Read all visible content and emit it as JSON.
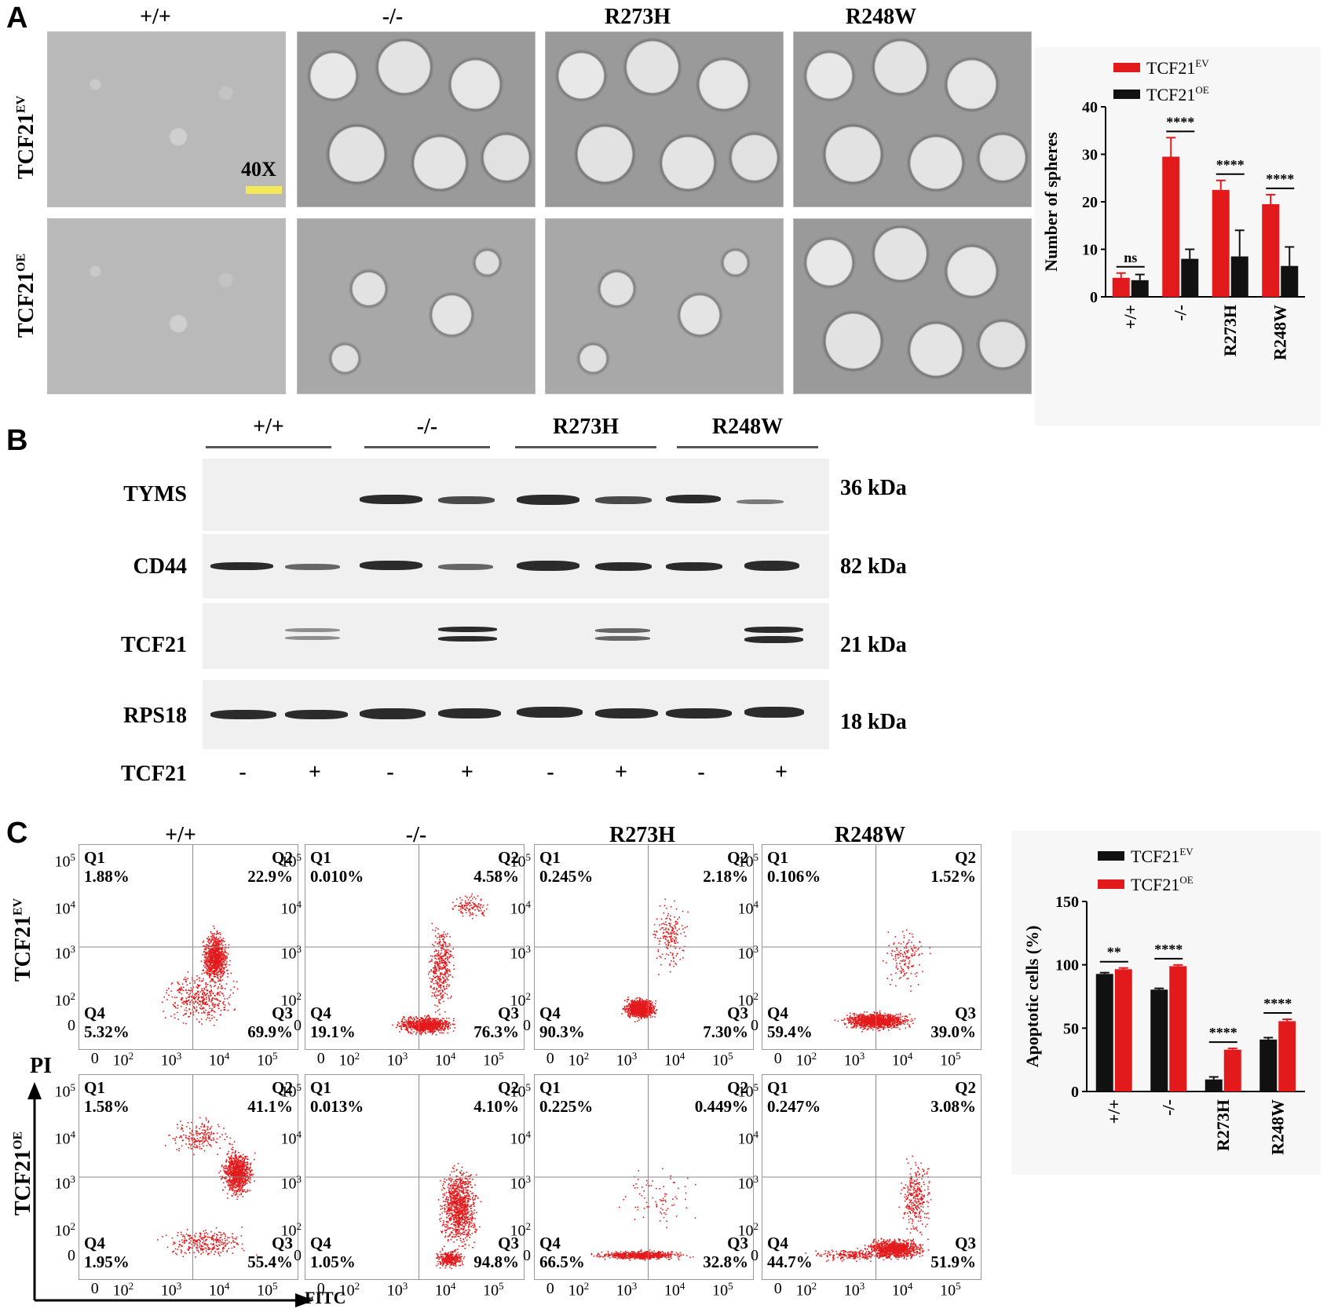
{
  "panels": {
    "a": "A",
    "b": "B",
    "c": "C"
  },
  "genotypes": [
    "+/+",
    "-/-",
    "R273H",
    "R248W"
  ],
  "panel_a": {
    "row_labels": {
      "ev_base": "TCF21",
      "ev_sup": "EV",
      "oe_base": "TCF21",
      "oe_sup": "OE"
    },
    "magnification": "40X",
    "scale_bar_color": "#f2e85a"
  },
  "panel_b": {
    "rows": [
      {
        "name": "TYMS",
        "kda": "36 kDa"
      },
      {
        "name": "CD44",
        "kda": "82 kDa"
      },
      {
        "name": "TCF21",
        "kda": "21 kDa"
      },
      {
        "name": "RPS18",
        "kda": "18 kDa"
      }
    ],
    "treatment_label": "TCF21",
    "treatment_signs": [
      "-",
      "+",
      "-",
      "+",
      "-",
      "+",
      "-",
      "+"
    ]
  },
  "panel_c": {
    "y_axis_label": "PI",
    "x_axis_label": "FITC",
    "row_labels": {
      "ev_base": "TCF21",
      "ev_sup": "EV",
      "oe_base": "TCF21",
      "oe_sup": "OE"
    },
    "quadrant_names": [
      "Q1",
      "Q2",
      "Q4",
      "Q3"
    ],
    "y_ticks": [
      "10",
      "10",
      "10",
      "10",
      "0"
    ],
    "y_tick_exps": [
      "5",
      "4",
      "3",
      "2",
      ""
    ],
    "x_ticks": [
      "0",
      "10",
      "10",
      "10",
      "10"
    ],
    "x_tick_exps": [
      "",
      "2",
      "3",
      "4",
      "5"
    ],
    "plots": [
      {
        "q1": "1.88%",
        "q2": "22.9%",
        "q4": "5.32%",
        "q3": "69.9%"
      },
      {
        "q1": "0.010%",
        "q2": "4.58%",
        "q4": "19.1%",
        "q3": "76.3%"
      },
      {
        "q1": "0.245%",
        "q2": "2.18%",
        "q4": "90.3%",
        "q3": "7.30%"
      },
      {
        "q1": "0.106%",
        "q2": "1.52%",
        "q4": "59.4%",
        "q3": "39.0%"
      },
      {
        "q1": "1.58%",
        "q2": "41.1%",
        "q4": "1.95%",
        "q3": "55.4%"
      },
      {
        "q1": "0.013%",
        "q2": "4.10%",
        "q4": "1.05%",
        "q3": "94.8%"
      },
      {
        "q1": "0.225%",
        "q2": "0.449%",
        "q4": "66.5%",
        "q3": "32.8%"
      },
      {
        "q1": "0.247%",
        "q2": "3.08%",
        "q4": "44.7%",
        "q3": "51.9%"
      }
    ],
    "dot_color": "#e31a1c"
  },
  "colors": {
    "red": "#e31a1c",
    "black": "#111111"
  },
  "chart_data": [
    {
      "type": "bar",
      "ylabel": "Number of spheres",
      "ylim": [
        0,
        40
      ],
      "yticks": [
        0,
        10,
        20,
        30,
        40
      ],
      "categories": [
        "+/+",
        "-/-",
        "R273H",
        "R248W"
      ],
      "series": [
        {
          "name_base": "TCF21",
          "name_sup": "EV",
          "color": "#e31a1c",
          "values": [
            4,
            29.5,
            22.5,
            19.5
          ],
          "errors": [
            1,
            4,
            2,
            2
          ]
        },
        {
          "name_base": "TCF21",
          "name_sup": "OE",
          "color": "#111111",
          "values": [
            3.5,
            8,
            8.5,
            6.5
          ],
          "errors": [
            1.2,
            2,
            5.5,
            4
          ]
        }
      ],
      "significance": [
        "ns",
        "****",
        "****",
        "****"
      ],
      "legend": "top"
    },
    {
      "type": "bar",
      "ylabel": "Apoptotic cells (%)",
      "ylim": [
        0,
        150
      ],
      "yticks": [
        0,
        50,
        100,
        150
      ],
      "categories": [
        "+/+",
        "-/-",
        "R273H",
        "R248W"
      ],
      "series": [
        {
          "name_base": "TCF21",
          "name_sup": "EV",
          "color": "#111111",
          "values": [
            92.8,
            80.4,
            9.5,
            41
          ],
          "errors": [
            1,
            1,
            2,
            1.5
          ]
        },
        {
          "name_base": "TCF21",
          "name_sup": "OE",
          "color": "#e31a1c",
          "values": [
            96.5,
            98.9,
            33,
            55.5
          ],
          "errors": [
            1,
            1,
            1,
            1.5
          ]
        }
      ],
      "significance": [
        "**",
        "****",
        "****",
        "****"
      ],
      "legend": "top"
    }
  ]
}
